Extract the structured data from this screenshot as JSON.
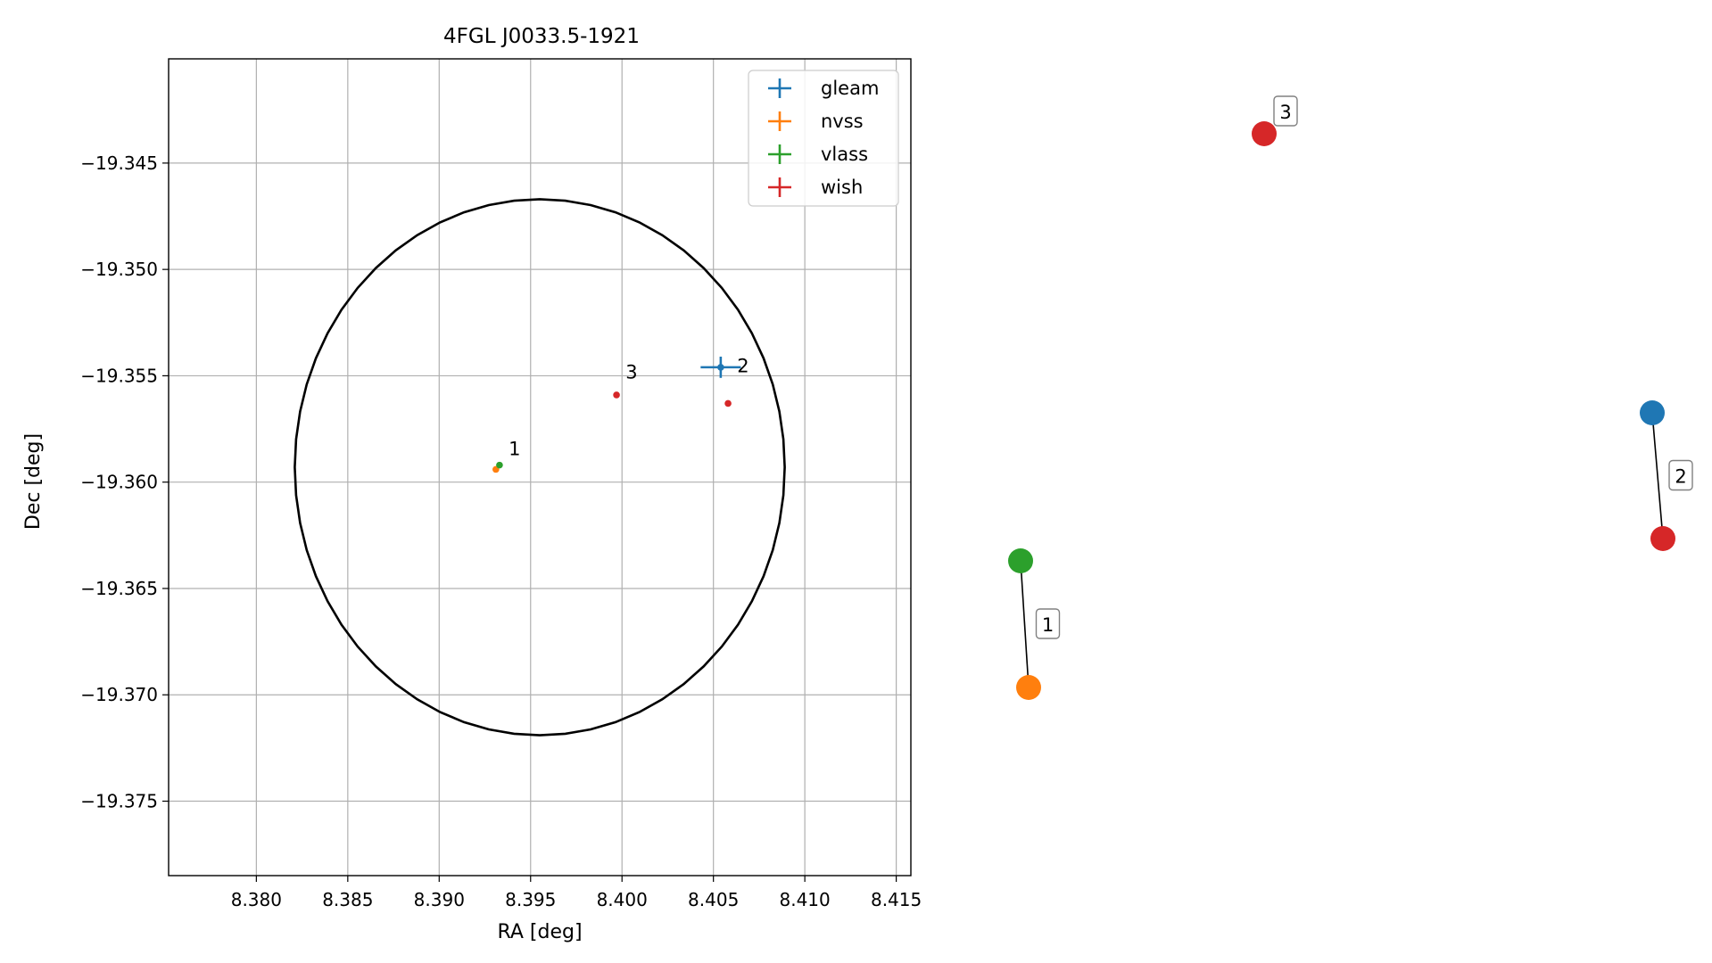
{
  "chart_data": [
    {
      "type": "scatter",
      "title": "4FGL J0033.5-1921",
      "xlabel": "RA [deg]",
      "ylabel": "Dec [deg]",
      "xlim": [
        8.3752,
        8.4158
      ],
      "ylim": [
        -19.3785,
        -19.3401
      ],
      "xticks": [
        "8.380",
        "8.385",
        "8.390",
        "8.395",
        "8.400",
        "8.405",
        "8.410",
        "8.415"
      ],
      "yticks": [
        "−19.345",
        "−19.350",
        "−19.355",
        "−19.360",
        "−19.365",
        "−19.370",
        "−19.375"
      ],
      "xtick_values": [
        8.38,
        8.385,
        8.39,
        8.395,
        8.4,
        8.405,
        8.41,
        8.415
      ],
      "ytick_values": [
        -19.345,
        -19.35,
        -19.355,
        -19.36,
        -19.365,
        -19.37,
        -19.375
      ],
      "grid": true,
      "legend_position": "top-right",
      "ellipse": {
        "center_ra": 8.3955,
        "center_dec": -19.3593,
        "semi_ra": 0.0134,
        "semi_dec": 0.0126,
        "color": "#000000"
      },
      "series": [
        {
          "name": "gleam",
          "color": "#1f77b4",
          "points": [
            {
              "ra": 8.4054,
              "dec": -19.3546,
              "err_ra": 0.0011,
              "err_dec": 0.0005
            }
          ]
        },
        {
          "name": "nvss",
          "color": "#ff7f0e",
          "points": [
            {
              "ra": 8.3931,
              "dec": -19.3594,
              "err_ra": 0.0,
              "err_dec": 0.0
            }
          ]
        },
        {
          "name": "vlass",
          "color": "#2ca02c",
          "points": [
            {
              "ra": 8.3933,
              "dec": -19.3592,
              "err_ra": 0.0,
              "err_dec": 0.0
            }
          ]
        },
        {
          "name": "wish",
          "color": "#d62728",
          "points": [
            {
              "ra": 8.3997,
              "dec": -19.3559,
              "err_ra": 0.0,
              "err_dec": 0.0
            },
            {
              "ra": 8.4058,
              "dec": -19.3563,
              "err_ra": 0.0,
              "err_dec": 0.0
            }
          ]
        }
      ],
      "annotations": [
        {
          "text": "1",
          "ra": 8.3936,
          "dec": -19.3589
        },
        {
          "text": "2",
          "ra": 8.4061,
          "dec": -19.355
        },
        {
          "text": "3",
          "ra": 8.4,
          "dec": -19.3553
        }
      ]
    },
    {
      "type": "network",
      "title": "",
      "nodes": [
        {
          "id": "vlass",
          "color": "#2ca02c"
        },
        {
          "id": "nvss",
          "color": "#ff7f0e"
        },
        {
          "id": "gleam",
          "color": "#1f77b4"
        },
        {
          "id": "wish-2",
          "color": "#d62728"
        },
        {
          "id": "wish-3",
          "color": "#d62728"
        }
      ],
      "edges": [
        {
          "from": "vlass",
          "to": "nvss",
          "label": "1"
        },
        {
          "from": "gleam",
          "to": "wish-2",
          "label": "2"
        }
      ],
      "node_labels": [
        {
          "node": "wish-3",
          "label": "3"
        }
      ]
    }
  ]
}
